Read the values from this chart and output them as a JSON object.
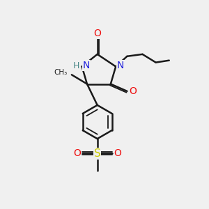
{
  "background_color": "#f0f0f0",
  "bond_color": "#1a1a1a",
  "N_color": "#2222dd",
  "NH_color": "#4a8888",
  "O_color": "#ee1111",
  "S_color": "#cccc00",
  "figsize": [
    3.0,
    3.0
  ],
  "dpi": 100,
  "xlim": [
    0,
    10
  ],
  "ylim": [
    0,
    10
  ]
}
